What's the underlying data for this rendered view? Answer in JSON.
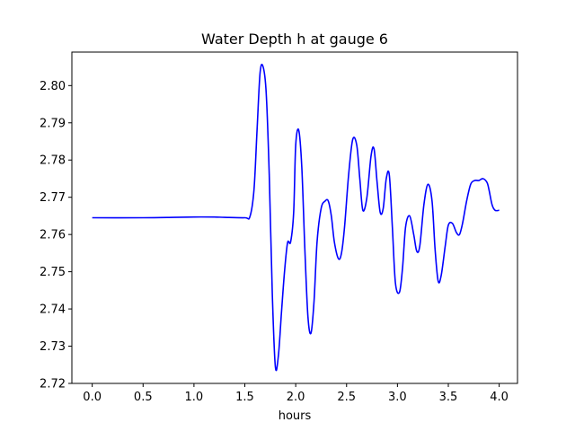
{
  "chart_data": {
    "type": "line",
    "title": "Water Depth h at gauge 6",
    "xlabel": "hours",
    "ylabel": "",
    "xlim": [
      -0.2,
      4.18
    ],
    "ylim": [
      2.72,
      2.809
    ],
    "grid": false,
    "x_ticks": [
      0.0,
      0.5,
      1.0,
      1.5,
      2.0,
      2.5,
      3.0,
      3.5,
      4.0
    ],
    "x_tick_labels": [
      "0.0",
      "0.5",
      "1.0",
      "1.5",
      "2.0",
      "2.5",
      "3.0",
      "3.5",
      "4.0"
    ],
    "y_ticks": [
      2.72,
      2.73,
      2.74,
      2.75,
      2.76,
      2.77,
      2.78,
      2.79,
      2.8
    ],
    "y_tick_labels": [
      "2.72",
      "2.73",
      "2.74",
      "2.75",
      "2.76",
      "2.77",
      "2.78",
      "2.79",
      "2.80"
    ],
    "series": [
      {
        "color": "#0000ff",
        "x": [
          0.0,
          0.5,
          0.8,
          1.0,
          1.2,
          1.3,
          1.5,
          1.55,
          1.59,
          1.62,
          1.65,
          1.68,
          1.71,
          1.74,
          1.77,
          1.8,
          1.83,
          1.86,
          1.89,
          1.92,
          1.95,
          1.98,
          2.0,
          2.03,
          2.06,
          2.09,
          2.12,
          2.15,
          2.18,
          2.21,
          2.25,
          2.29,
          2.32,
          2.35,
          2.38,
          2.42,
          2.45,
          2.48,
          2.52,
          2.56,
          2.6,
          2.63,
          2.66,
          2.7,
          2.74,
          2.77,
          2.8,
          2.83,
          2.86,
          2.89,
          2.92,
          2.95,
          2.98,
          3.02,
          3.05,
          3.08,
          3.12,
          3.16,
          3.19,
          3.22,
          3.26,
          3.3,
          3.34,
          3.37,
          3.4,
          3.43,
          3.47,
          3.5,
          3.54,
          3.58,
          3.61,
          3.64,
          3.68,
          3.72,
          3.76,
          3.8,
          3.84,
          3.88,
          3.9,
          3.93,
          3.96,
          4.0
        ],
        "y": [
          2.7645,
          2.7645,
          2.7646,
          2.7647,
          2.7647,
          2.7646,
          2.7645,
          2.7648,
          2.772,
          2.788,
          2.8035,
          2.805,
          2.798,
          2.776,
          2.744,
          2.7245,
          2.7275,
          2.739,
          2.75,
          2.7578,
          2.758,
          2.766,
          2.784,
          2.788,
          2.778,
          2.756,
          2.738,
          2.7335,
          2.742,
          2.758,
          2.767,
          2.769,
          2.769,
          2.765,
          2.758,
          2.7535,
          2.755,
          2.762,
          2.776,
          2.7855,
          2.784,
          2.775,
          2.7665,
          2.77,
          2.781,
          2.783,
          2.774,
          2.766,
          2.767,
          2.775,
          2.776,
          2.762,
          2.747,
          2.7445,
          2.751,
          2.762,
          2.765,
          2.76,
          2.7555,
          2.757,
          2.768,
          2.7735,
          2.769,
          2.756,
          2.7475,
          2.749,
          2.757,
          2.7625,
          2.763,
          2.7605,
          2.76,
          2.763,
          2.769,
          2.7735,
          2.7745,
          2.7745,
          2.775,
          2.774,
          2.772,
          2.768,
          2.7665,
          2.7665
        ]
      }
    ]
  }
}
